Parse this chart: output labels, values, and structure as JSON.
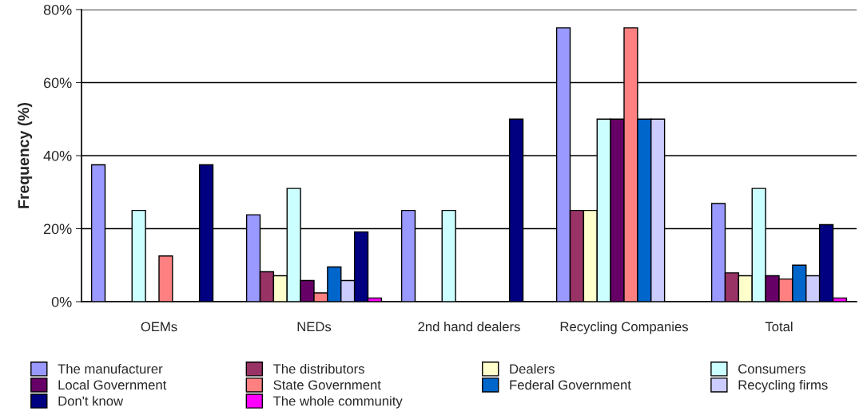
{
  "chart_data": {
    "type": "bar",
    "ylabel": "Frequency (%)",
    "categories": [
      "OEMs",
      "NEDs",
      "2nd hand dealers",
      "Recycling Companies",
      "Total"
    ],
    "series": [
      {
        "name": "The manufacturer",
        "color": "#9999ff",
        "values": [
          37.5,
          23.8,
          25,
          75,
          26.9
        ]
      },
      {
        "name": "The distributors",
        "color": "#993366",
        "values": [
          null,
          8.2,
          null,
          25,
          7.9
        ]
      },
      {
        "name": "Dealers",
        "color": "#ffffcc",
        "values": [
          null,
          7.1,
          null,
          25,
          7.1
        ]
      },
      {
        "name": "Consumers",
        "color": "#ccffff",
        "values": [
          25,
          31.0,
          25,
          50,
          31.0
        ]
      },
      {
        "name": "Local Government",
        "color": "#660066",
        "values": [
          null,
          5.8,
          null,
          50,
          7.1
        ]
      },
      {
        "name": "State Government",
        "color": "#ff8080",
        "values": [
          12.5,
          2.4,
          null,
          75,
          6.2
        ]
      },
      {
        "name": "Federal Government",
        "color": "#0066cc",
        "values": [
          null,
          9.5,
          null,
          50,
          10.0
        ]
      },
      {
        "name": "Recycling firms",
        "color": "#ccccff",
        "values": [
          null,
          5.8,
          null,
          50,
          7.1
        ]
      },
      {
        "name": "Don't know",
        "color": "#000080",
        "values": [
          37.5,
          19.1,
          50,
          null,
          21.1
        ]
      },
      {
        "name": "The whole community",
        "color": "#ff00ff",
        "values": [
          null,
          1.0,
          null,
          null,
          1.0
        ]
      }
    ],
    "ylim": [
      0,
      80
    ],
    "yticks": [
      {
        "value": 0,
        "label": "0%"
      },
      {
        "value": 20,
        "label": "20%"
      },
      {
        "value": 40,
        "label": "40%"
      },
      {
        "value": 60,
        "label": "60%"
      },
      {
        "value": 80,
        "label": "80%"
      }
    ],
    "grid": "y",
    "legend": "bottom"
  }
}
